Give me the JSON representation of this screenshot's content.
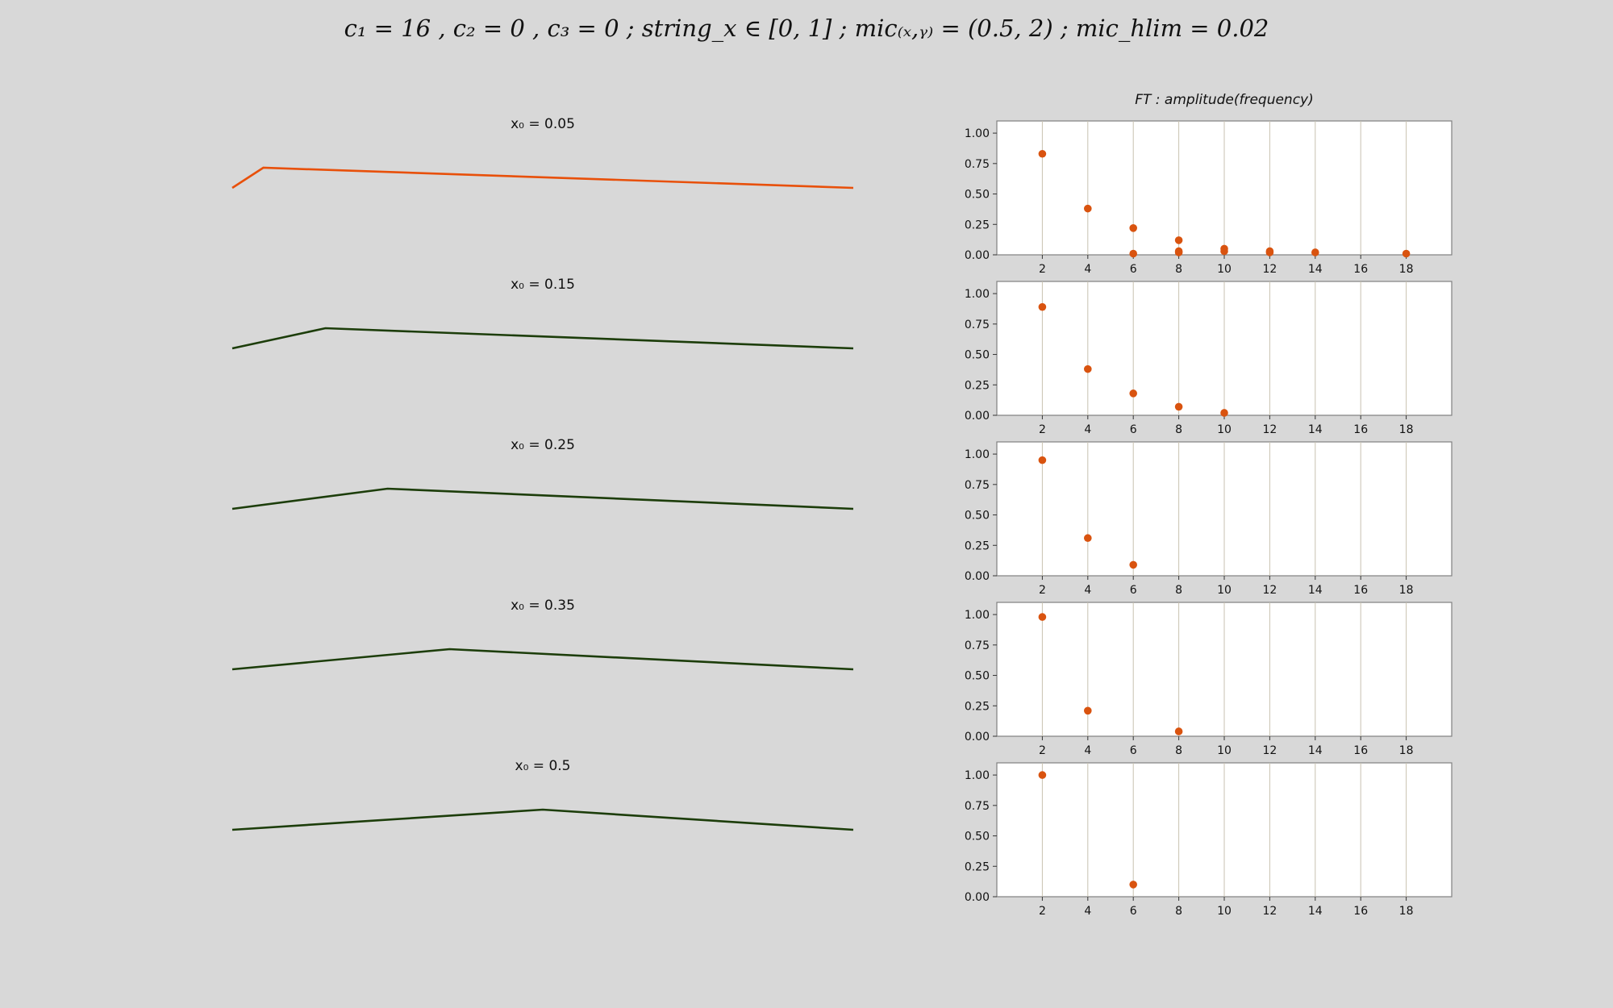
{
  "header": {
    "title": "c₁ = 16 , c₂ = 0 , c₃ = 0 ; string_x ∈ [0, 1] ; mic₍ₓ,ᵧ₎ = (0.5, 2) ; mic_hlim = 0.02"
  },
  "ft_title": "FT : amplitude(frequency)",
  "colors": {
    "background": "#d8d8d8",
    "selected_string": "#e8500a",
    "string": "#1c3d0a",
    "ft_point": "#d9530f",
    "grid": "#c8c2b0",
    "axes_frame": "#808080"
  },
  "chart_data": [
    {
      "type": "line",
      "title": "x₀ = 0.05",
      "x": [
        0,
        0.05,
        1
      ],
      "y": [
        0,
        1,
        0
      ],
      "highlighted": true
    },
    {
      "type": "line",
      "title": "x₀ = 0.15",
      "x": [
        0,
        0.15,
        1
      ],
      "y": [
        0,
        1,
        0
      ],
      "highlighted": false
    },
    {
      "type": "line",
      "title": "x₀ = 0.25",
      "x": [
        0,
        0.25,
        1
      ],
      "y": [
        0,
        1,
        0
      ],
      "highlighted": false
    },
    {
      "type": "line",
      "title": "x₀ = 0.35",
      "x": [
        0,
        0.35,
        1
      ],
      "y": [
        0,
        1,
        0
      ],
      "highlighted": false
    },
    {
      "type": "line",
      "title": "x₀ = 0.5",
      "x": [
        0,
        0.5,
        1
      ],
      "y": [
        0,
        1,
        0
      ],
      "highlighted": false
    },
    {
      "type": "scatter",
      "xlim": [
        0,
        20
      ],
      "ylim": [
        0,
        1.1
      ],
      "xticks": [
        2,
        4,
        6,
        8,
        10,
        12,
        14,
        16,
        18
      ],
      "yticks": [
        "0.00",
        "0.25",
        "0.50",
        "0.75",
        "1.00"
      ],
      "grid": "x",
      "points": [
        [
          2,
          0.83
        ],
        [
          4,
          0.38
        ],
        [
          6,
          0.22
        ],
        [
          6,
          0.01
        ],
        [
          8,
          0.12
        ],
        [
          8,
          0.03
        ],
        [
          8,
          0.02
        ],
        [
          10,
          0.05
        ],
        [
          10,
          0.03
        ],
        [
          12,
          0.03
        ],
        [
          12,
          0.02
        ],
        [
          14,
          0.02
        ],
        [
          18,
          0.01
        ]
      ]
    },
    {
      "type": "scatter",
      "xlim": [
        0,
        20
      ],
      "ylim": [
        0,
        1.1
      ],
      "xticks": [
        2,
        4,
        6,
        8,
        10,
        12,
        14,
        16,
        18
      ],
      "yticks": [
        "0.00",
        "0.25",
        "0.50",
        "0.75",
        "1.00"
      ],
      "grid": "x",
      "points": [
        [
          2,
          0.89
        ],
        [
          4,
          0.38
        ],
        [
          6,
          0.18
        ],
        [
          8,
          0.07
        ],
        [
          10,
          0.02
        ]
      ]
    },
    {
      "type": "scatter",
      "xlim": [
        0,
        20
      ],
      "ylim": [
        0,
        1.1
      ],
      "xticks": [
        2,
        4,
        6,
        8,
        10,
        12,
        14,
        16,
        18
      ],
      "yticks": [
        "0.00",
        "0.25",
        "0.50",
        "0.75",
        "1.00"
      ],
      "grid": "x",
      "points": [
        [
          2,
          0.95
        ],
        [
          4,
          0.31
        ],
        [
          6,
          0.09
        ]
      ]
    },
    {
      "type": "scatter",
      "xlim": [
        0,
        20
      ],
      "ylim": [
        0,
        1.1
      ],
      "xticks": [
        2,
        4,
        6,
        8,
        10,
        12,
        14,
        16,
        18
      ],
      "yticks": [
        "0.00",
        "0.25",
        "0.50",
        "0.75",
        "1.00"
      ],
      "grid": "x",
      "points": [
        [
          2,
          0.98
        ],
        [
          4,
          0.21
        ],
        [
          8,
          0.04
        ]
      ]
    },
    {
      "type": "scatter",
      "xlim": [
        0,
        20
      ],
      "ylim": [
        0,
        1.1
      ],
      "xticks": [
        2,
        4,
        6,
        8,
        10,
        12,
        14,
        16,
        18
      ],
      "yticks": [
        "0.00",
        "0.25",
        "0.50",
        "0.75",
        "1.00"
      ],
      "grid": "x",
      "points": [
        [
          2,
          1.0
        ],
        [
          6,
          0.1
        ]
      ]
    }
  ]
}
